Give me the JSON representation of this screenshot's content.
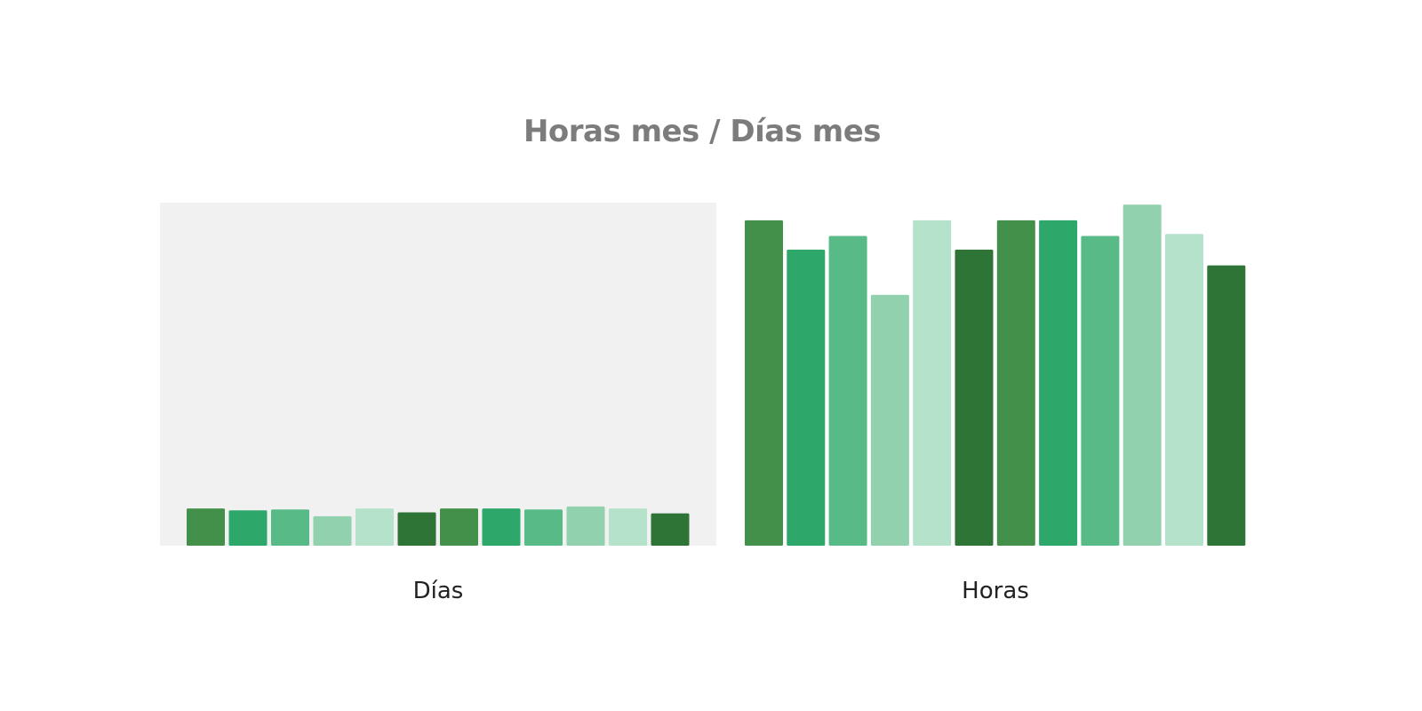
{
  "title": "Horas mes / Días mes",
  "chart_data": [
    {
      "type": "bar",
      "title": "Horas mes / Días mes",
      "xlabel": "Días",
      "ylabel": "",
      "categories": [
        "",
        "",
        "",
        "",
        "",
        "",
        "",
        "",
        "",
        "",
        "",
        ""
      ],
      "values": [
        19,
        18,
        18.5,
        15,
        19,
        17,
        19,
        19,
        18.5,
        20,
        19,
        16.5
      ],
      "ylim": [
        0,
        175
      ],
      "grid": false,
      "legend": "none",
      "colors": [
        "#43904a",
        "#2ea86a",
        "#58bb87",
        "#91d1ae",
        "#b5e2ca",
        "#2e7437",
        "#43904a",
        "#2ea86a",
        "#58bb87",
        "#91d1ae",
        "#b5e2ca",
        "#2e7437"
      ]
    },
    {
      "type": "bar",
      "title": "Horas mes / Días mes",
      "xlabel": "Horas",
      "ylabel": "",
      "categories": [
        "",
        "",
        "",
        "",
        "",
        "",
        "",
        "",
        "",
        "",
        "",
        ""
      ],
      "values": [
        166,
        151,
        158,
        128,
        166,
        151,
        166,
        166,
        158,
        174,
        159,
        143
      ],
      "ylim": [
        0,
        175
      ],
      "grid": false,
      "legend": "none",
      "colors": [
        "#43904a",
        "#2ea86a",
        "#58bb87",
        "#91d1ae",
        "#b5e2ca",
        "#2e7437",
        "#43904a",
        "#2ea86a",
        "#58bb87",
        "#91d1ae",
        "#b5e2ca",
        "#2e7437"
      ]
    }
  ]
}
